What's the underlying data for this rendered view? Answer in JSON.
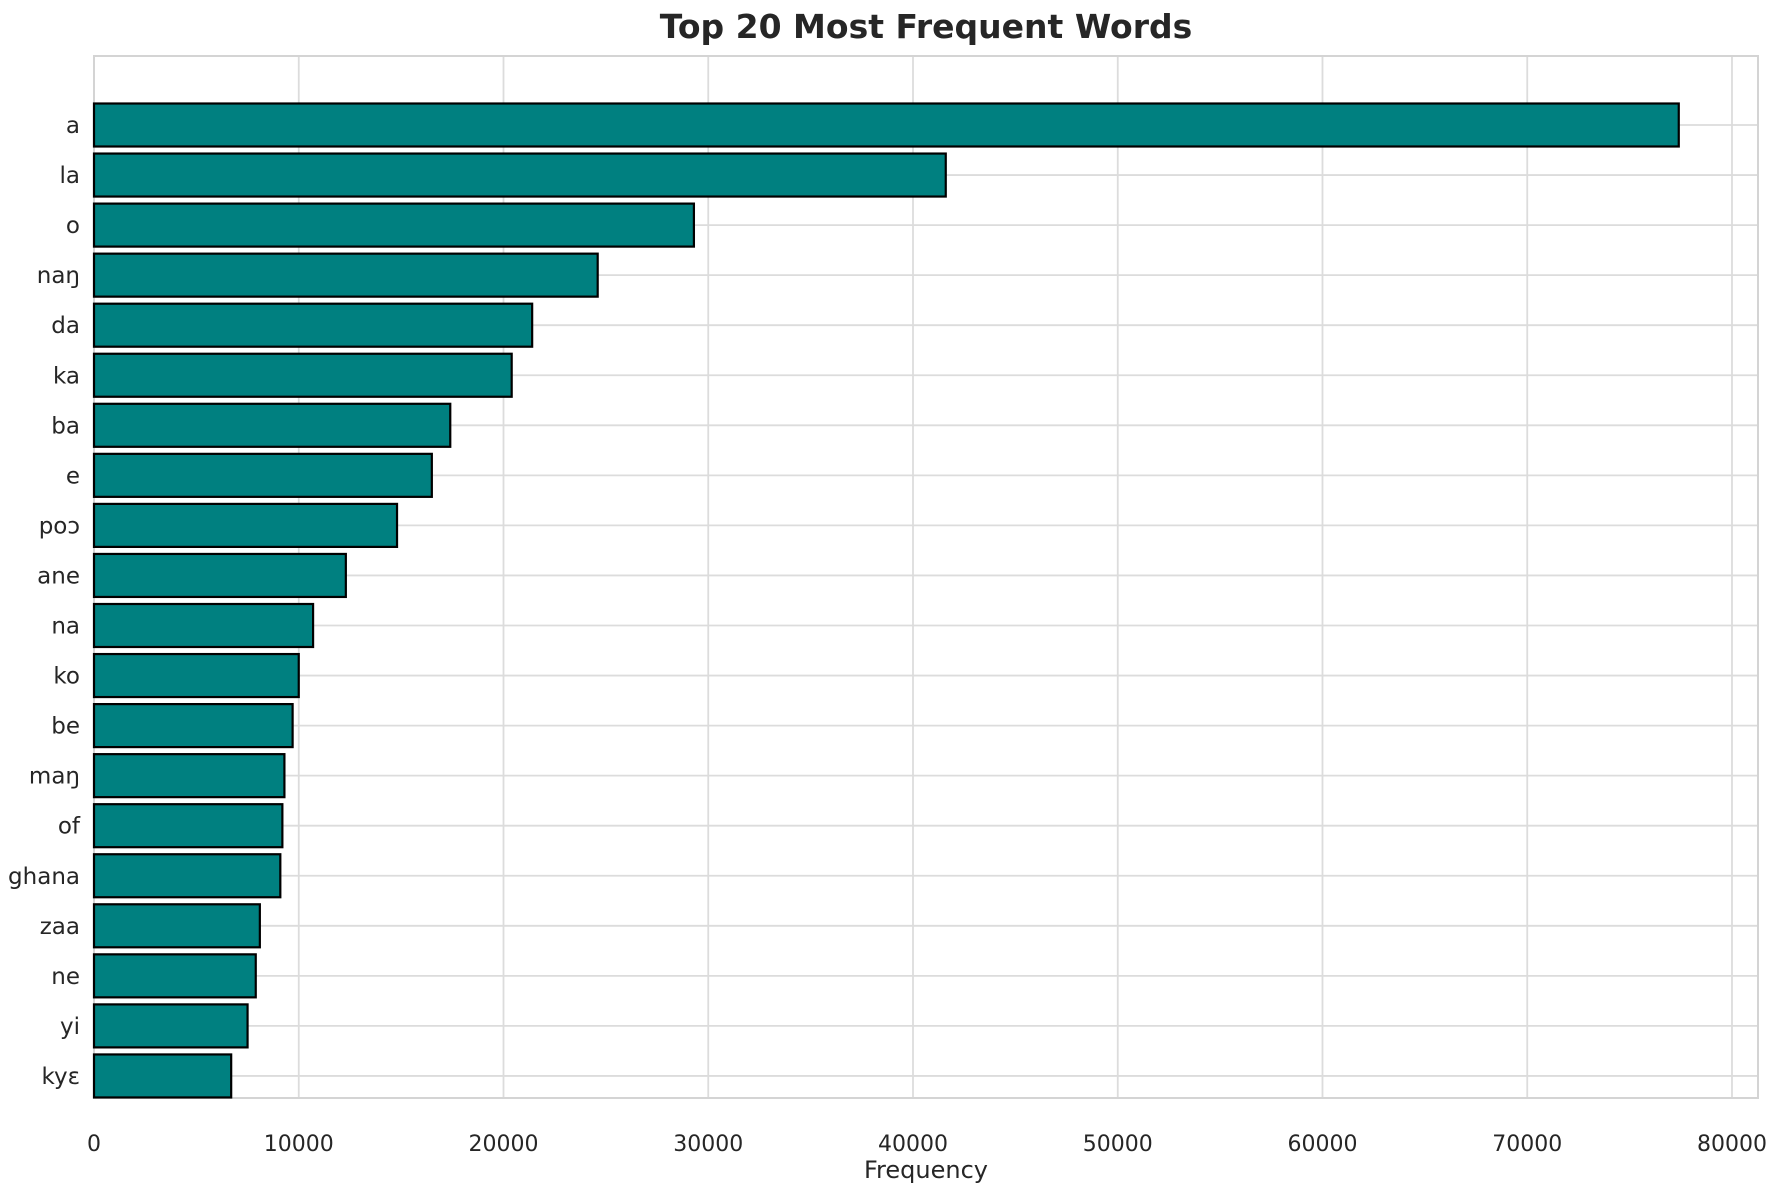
{
  "figure": {
    "background": "#ffffff"
  },
  "chart_data": {
    "type": "bar",
    "orientation": "horizontal",
    "title": "Top 20 Most Frequent Words",
    "xlabel": "Frequency",
    "ylabel": "",
    "categories": [
      "a",
      "la",
      "o",
      "naŋ",
      "da",
      "ka",
      "ba",
      "e",
      "poɔ",
      "ane",
      "na",
      "ko",
      "be",
      "maŋ",
      "of",
      "ghana",
      "zaa",
      "ne",
      "yi",
      "kyɛ"
    ],
    "values": [
      77400,
      41600,
      29300,
      24600,
      21400,
      20400,
      17400,
      16500,
      14800,
      12300,
      10700,
      10000,
      9700,
      9300,
      9200,
      9100,
      8100,
      7900,
      7500,
      6700
    ],
    "xlim": [
      0,
      81270
    ],
    "xticks": [
      0,
      10000,
      20000,
      30000,
      40000,
      50000,
      60000,
      70000,
      80000
    ],
    "xtick_labels": [
      "0",
      "10000",
      "20000",
      "30000",
      "40000",
      "50000",
      "60000",
      "70000",
      "80000"
    ],
    "grid": true,
    "legend_position": "none",
    "bar_color": "#008080",
    "bar_edge_color": "#000000",
    "grid_color": "#dcdcdc",
    "spine_color": "#d4d4d4",
    "text_color": "#262626"
  }
}
